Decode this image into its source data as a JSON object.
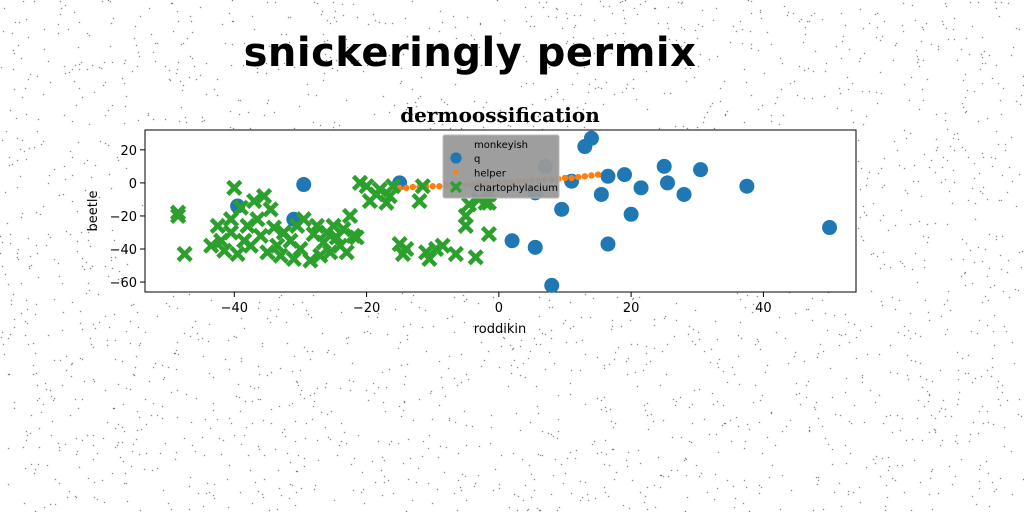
{
  "suptitle": "snickeringly permix",
  "chart_data": {
    "type": "scatter",
    "title": "dermoossification",
    "xlabel": "roddikin",
    "ylabel": "beetle",
    "xlim": [
      -53.5,
      54
    ],
    "ylim": [
      -66,
      32
    ],
    "xticks": [
      -40,
      -20,
      0,
      20,
      40
    ],
    "yticks": [
      20,
      0,
      -20,
      -40,
      -60
    ],
    "xtick_labels": [
      "−40",
      "−20",
      "0",
      "20",
      "40"
    ],
    "ytick_labels": [
      "20",
      "0",
      "−20",
      "−40",
      "−60"
    ],
    "grid": false,
    "legend": {
      "title": "monkeyish",
      "placement": "top-center",
      "background": "#999999"
    },
    "series": [
      {
        "name": "q",
        "marker": "circle",
        "color": "#1f77b4",
        "points": [
          [
            -29.5,
            -1
          ],
          [
            -31,
            -22
          ],
          [
            -39.5,
            -14
          ],
          [
            -15,
            0
          ],
          [
            5.5,
            -6
          ],
          [
            7,
            10
          ],
          [
            8,
            -62
          ],
          [
            5.5,
            -39
          ],
          [
            2,
            -35
          ],
          [
            9.5,
            -16
          ],
          [
            11,
            1
          ],
          [
            13,
            22
          ],
          [
            14,
            27
          ],
          [
            15.5,
            -7
          ],
          [
            16.5,
            4
          ],
          [
            16.5,
            -37
          ],
          [
            19,
            5
          ],
          [
            20,
            -19
          ],
          [
            21.5,
            -3
          ],
          [
            25,
            10
          ],
          [
            25.5,
            0
          ],
          [
            28,
            -7
          ],
          [
            30.5,
            8
          ],
          [
            37.5,
            -2
          ],
          [
            50,
            -27
          ]
        ]
      },
      {
        "name": "helper",
        "marker": "dot",
        "color": "#ff7f0e",
        "points": [
          [
            -15,
            -3
          ],
          [
            -14,
            -3
          ],
          [
            -13,
            -2.5
          ],
          [
            -12,
            -2.5
          ],
          [
            -11,
            -2
          ],
          [
            -10,
            -2
          ],
          [
            -9,
            -2
          ],
          [
            -8,
            -1.5
          ],
          [
            -7,
            -1.5
          ],
          [
            -6,
            -1
          ],
          [
            -5,
            -1
          ],
          [
            -4,
            -1
          ],
          [
            -3,
            -0.5
          ],
          [
            -2,
            -0.5
          ],
          [
            -1,
            0
          ],
          [
            0,
            0
          ],
          [
            1,
            0.5
          ],
          [
            2,
            0.5
          ],
          [
            3,
            1
          ],
          [
            4,
            1
          ],
          [
            5,
            1.5
          ],
          [
            6,
            1.5
          ],
          [
            7,
            2
          ],
          [
            8,
            2
          ],
          [
            9,
            2.5
          ],
          [
            10,
            3
          ],
          [
            11,
            3
          ],
          [
            12,
            3.5
          ],
          [
            13,
            4
          ],
          [
            14,
            4.5
          ],
          [
            15,
            5
          ]
        ]
      },
      {
        "name": "chartophylacium",
        "marker": "x",
        "color": "#2ca02c",
        "points": [
          [
            -48.5,
            -18
          ],
          [
            -48.5,
            -20
          ],
          [
            -47.5,
            -43
          ],
          [
            -43.5,
            -38
          ],
          [
            -42.5,
            -26
          ],
          [
            -42,
            -35
          ],
          [
            -41.5,
            -41
          ],
          [
            -40.5,
            -30
          ],
          [
            -40.5,
            -22
          ],
          [
            -40,
            -3
          ],
          [
            -39.5,
            -43
          ],
          [
            -39,
            -15
          ],
          [
            -38.5,
            -35
          ],
          [
            -38,
            -26
          ],
          [
            -37.5,
            -38
          ],
          [
            -37,
            -11
          ],
          [
            -36.5,
            -22
          ],
          [
            -36,
            -32
          ],
          [
            -35.5,
            -8
          ],
          [
            -35,
            -42
          ],
          [
            -34.5,
            -16
          ],
          [
            -34,
            -27
          ],
          [
            -33.5,
            -38
          ],
          [
            -33,
            -44
          ],
          [
            -32.5,
            -30
          ],
          [
            -31.5,
            -35
          ],
          [
            -31,
            -46
          ],
          [
            -30.5,
            -26
          ],
          [
            -30,
            -40
          ],
          [
            -29.5,
            -22
          ],
          [
            -28.5,
            -47
          ],
          [
            -28,
            -31
          ],
          [
            -27.5,
            -26
          ],
          [
            -27,
            -44
          ],
          [
            -26.5,
            -36
          ],
          [
            -26,
            -30
          ],
          [
            -25.5,
            -42
          ],
          [
            -25,
            -26
          ],
          [
            -24.5,
            -33
          ],
          [
            -24,
            -38
          ],
          [
            -23.5,
            -28
          ],
          [
            -23,
            -42
          ],
          [
            -22.5,
            -20
          ],
          [
            -22,
            -32
          ],
          [
            -21.5,
            -33
          ],
          [
            -21,
            0
          ],
          [
            -20,
            -2
          ],
          [
            -19.5,
            -11
          ],
          [
            -18.5,
            -7
          ],
          [
            -18,
            -4
          ],
          [
            -17,
            -12
          ],
          [
            -16.5,
            -8
          ],
          [
            -16,
            -2
          ],
          [
            -15,
            -37
          ],
          [
            -14.5,
            -43
          ],
          [
            -14,
            -40
          ],
          [
            -12,
            -11
          ],
          [
            -11.5,
            -2
          ],
          [
            -11,
            -42
          ],
          [
            -10.5,
            -46
          ],
          [
            -9.5,
            -40
          ],
          [
            -8.5,
            -38
          ],
          [
            -6.5,
            -43
          ],
          [
            -5,
            -26
          ],
          [
            -5,
            -20
          ],
          [
            -4.5,
            -13
          ],
          [
            -3.5,
            -45
          ],
          [
            -3,
            -10
          ],
          [
            -2,
            -12
          ],
          [
            -1.5,
            -7
          ],
          [
            -1.5,
            -12
          ],
          [
            -1.5,
            -31
          ]
        ]
      }
    ]
  }
}
